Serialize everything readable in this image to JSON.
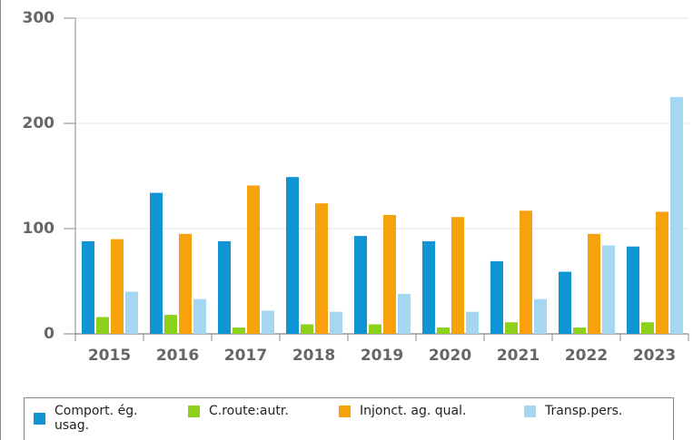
{
  "chart_data": {
    "type": "bar",
    "categories": [
      "2015",
      "2016",
      "2017",
      "2018",
      "2019",
      "2020",
      "2021",
      "2022",
      "2023"
    ],
    "series": [
      {
        "name": "Comport. ég. usag.",
        "color": "#0f94d6",
        "values": [
          88,
          134,
          88,
          149,
          93,
          88,
          69,
          59,
          83
        ]
      },
      {
        "name": "C.route:autr.",
        "color": "#8ed11c",
        "values": [
          16,
          18,
          6,
          9,
          9,
          6,
          11,
          6,
          11
        ]
      },
      {
        "name": "Injonct. ag. qual.",
        "color": "#f7a10c",
        "values": [
          90,
          95,
          141,
          124,
          113,
          111,
          117,
          95,
          116
        ]
      },
      {
        "name": "Transp.pers.",
        "color": "#a5d6f2",
        "values": [
          40,
          33,
          22,
          21,
          38,
          21,
          33,
          84,
          225
        ]
      }
    ],
    "ylim": [
      0,
      300
    ],
    "yticks": [
      0,
      100,
      200,
      300
    ],
    "grid": true,
    "legend": "bottom"
  }
}
